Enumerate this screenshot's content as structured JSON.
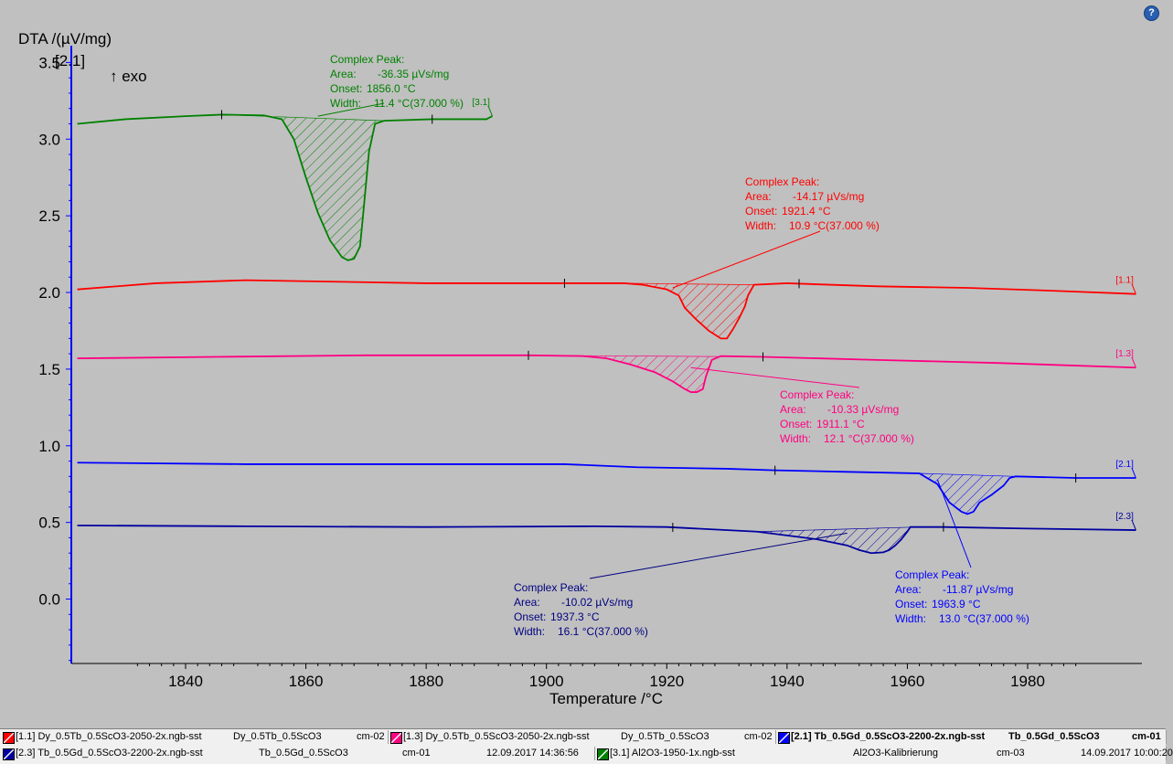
{
  "help_label": "?",
  "chart_data": {
    "type": "line",
    "xlabel": "Temperature /°C",
    "ylabel": "DTA /(µV/mg)",
    "y_scale_tag": "[2.1]",
    "exo_label": "↑ exo",
    "xlim": [
      1821,
      1999
    ],
    "ylim": [
      -0.42,
      3.55
    ],
    "x_ticks": [
      1840,
      1860,
      1880,
      1900,
      1920,
      1940,
      1960,
      1980
    ],
    "y_ticks": [
      0.0,
      0.5,
      1.0,
      1.5,
      2.0,
      2.5,
      3.0,
      3.5
    ],
    "x_tick_labels": [
      "1840",
      "1860",
      "1880",
      "1900",
      "1920",
      "1940",
      "1960",
      "1980"
    ],
    "y_tick_labels": [
      "0.0",
      "0.5",
      "1.0",
      "1.5",
      "2.0",
      "2.5",
      "3.0",
      "3.5"
    ],
    "series": [
      {
        "tag": "[3.1]",
        "color": "#008000",
        "x": [
          1822,
          1830,
          1840,
          1846,
          1853,
          1856,
          1858,
          1860,
          1862,
          1864,
          1866,
          1867,
          1868,
          1869,
          1869.5,
          1870.5,
          1871.5,
          1873,
          1881,
          1890,
          1891
        ],
        "y": [
          3.1,
          3.13,
          3.15,
          3.16,
          3.155,
          3.13,
          3.0,
          2.75,
          2.52,
          2.34,
          2.23,
          2.21,
          2.22,
          2.3,
          2.5,
          2.92,
          3.1,
          3.12,
          3.13,
          3.13,
          3.15
        ]
      },
      {
        "tag": "[1.1]",
        "color": "#ff0000",
        "x": [
          1822,
          1835,
          1850,
          1865,
          1880,
          1903,
          1913,
          1916,
          1920,
          1922,
          1923,
          1925,
          1927,
          1929,
          1930,
          1931,
          1932,
          1933,
          1933.5,
          1934.5,
          1940,
          1955,
          1970,
          1985,
          1998
        ],
        "y": [
          2.02,
          2.06,
          2.08,
          2.07,
          2.06,
          2.06,
          2.06,
          2.05,
          2.02,
          1.98,
          1.9,
          1.82,
          1.75,
          1.7,
          1.7,
          1.76,
          1.83,
          1.91,
          1.98,
          2.05,
          2.06,
          2.04,
          2.03,
          2.01,
          1.99
        ]
      },
      {
        "tag": "[1.3]",
        "color": "#ff0080",
        "x": [
          1822,
          1845,
          1870,
          1897,
          1906,
          1910,
          1914,
          1918,
          1921,
          1923,
          1924,
          1925,
          1926,
          1926.5,
          1927.5,
          1929,
          1936,
          1955,
          1975,
          1998
        ],
        "y": [
          1.57,
          1.58,
          1.59,
          1.59,
          1.585,
          1.57,
          1.53,
          1.48,
          1.42,
          1.37,
          1.35,
          1.35,
          1.37,
          1.45,
          1.56,
          1.585,
          1.58,
          1.56,
          1.54,
          1.51
        ]
      },
      {
        "tag": "[2.1]",
        "color": "#0000ff",
        "x": [
          1822,
          1850,
          1880,
          1903,
          1915,
          1930,
          1938,
          1950,
          1962,
          1965,
          1967,
          1969,
          1970,
          1971,
          1972,
          1974,
          1976,
          1977,
          1978,
          1988,
          1998
        ],
        "y": [
          0.89,
          0.88,
          0.88,
          0.88,
          0.86,
          0.85,
          0.84,
          0.83,
          0.82,
          0.75,
          0.63,
          0.57,
          0.555,
          0.57,
          0.63,
          0.68,
          0.74,
          0.79,
          0.8,
          0.79,
          0.79
        ]
      },
      {
        "tag": "[2.3]",
        "color": "#0000a0",
        "x": [
          1822,
          1850,
          1880,
          1908,
          1920,
          1935,
          1945,
          1950,
          1952,
          1954,
          1956,
          1957,
          1958,
          1959,
          1960,
          1960.5,
          1961.5,
          1966,
          1980,
          1998
        ],
        "y": [
          0.48,
          0.475,
          0.47,
          0.475,
          0.47,
          0.44,
          0.39,
          0.35,
          0.32,
          0.3,
          0.305,
          0.32,
          0.35,
          0.39,
          0.44,
          0.47,
          0.47,
          0.47,
          0.46,
          0.45
        ]
      }
    ],
    "annotations": [
      {
        "color": "#008000",
        "title": "Complex Peak:",
        "area_label": "Area:",
        "area_value": "-36.35 µVs/mg",
        "onset_label": "Onset:",
        "onset_value": "1856.0 °C",
        "width_label": "Width:",
        "width_value": "11.4 °C(37.000 %)"
      },
      {
        "color": "#ff0000",
        "title": "Complex Peak:",
        "area_label": "Area:",
        "area_value": "-14.17 µVs/mg",
        "onset_label": "Onset:",
        "onset_value": "1921.4 °C",
        "width_label": "Width:",
        "width_value": "10.9 °C(37.000 %)"
      },
      {
        "color": "#ff0080",
        "title": "Complex Peak:",
        "area_label": "Area:",
        "area_value": "-10.33 µVs/mg",
        "onset_label": "Onset:",
        "onset_value": "1911.1 °C",
        "width_label": "Width:",
        "width_value": "12.1 °C(37.000 %)"
      },
      {
        "color": "#000080",
        "title": "Complex Peak:",
        "area_label": "Area:",
        "area_value": "-10.02 µVs/mg",
        "onset_label": "Onset:",
        "onset_value": "1937.3 °C",
        "width_label": "Width:",
        "width_value": "16.1 °C(37.000 %)"
      },
      {
        "color": "#0000ff",
        "title": "Complex Peak:",
        "area_label": "Area:",
        "area_value": "-11.87 µVs/mg",
        "onset_label": "Onset:",
        "onset_value": "1963.9 °C",
        "width_label": "Width:",
        "width_value": "13.0 °C(37.000 %)"
      }
    ]
  },
  "legend": {
    "row1": [
      {
        "color": "#ff0000",
        "tag": "[1.1]",
        "file": "Dy_0.5Tb_0.5ScO3-2050-2x.ngb-sst",
        "sample": "Dy_0.5Tb_0.5ScO3",
        "crucible": "cm-02"
      },
      {
        "color": "#ff0080",
        "tag": "[1.3]",
        "file": "Dy_0.5Tb_0.5ScO3-2050-2x.ngb-sst",
        "sample": "Dy_0.5Tb_0.5ScO3",
        "crucible": "cm-02"
      },
      {
        "color": "#0000ff",
        "tag": "[2.1]",
        "file": "Tb_0.5Gd_0.5ScO3-2200-2x.ngb-sst",
        "sample": "Tb_0.5Gd_0.5ScO3",
        "crucible": "cm-01"
      }
    ],
    "row2": [
      {
        "color": "#0000a0",
        "tag": "[2.3]",
        "file": "Tb_0.5Gd_0.5ScO3-2200-2x.ngb-sst",
        "sample": "Tb_0.5Gd_0.5ScO3",
        "crucible": "cm-01",
        "date": "12.09.2017 14:36:56"
      },
      {
        "color": "#008000",
        "tag": "[3.1]",
        "file": "Al2O3-1950-1x.ngb-sst",
        "sample": "Al2O3-Kalibrierung",
        "crucible": "cm-03",
        "date": "14.09.2017 10:00:20"
      }
    ]
  }
}
